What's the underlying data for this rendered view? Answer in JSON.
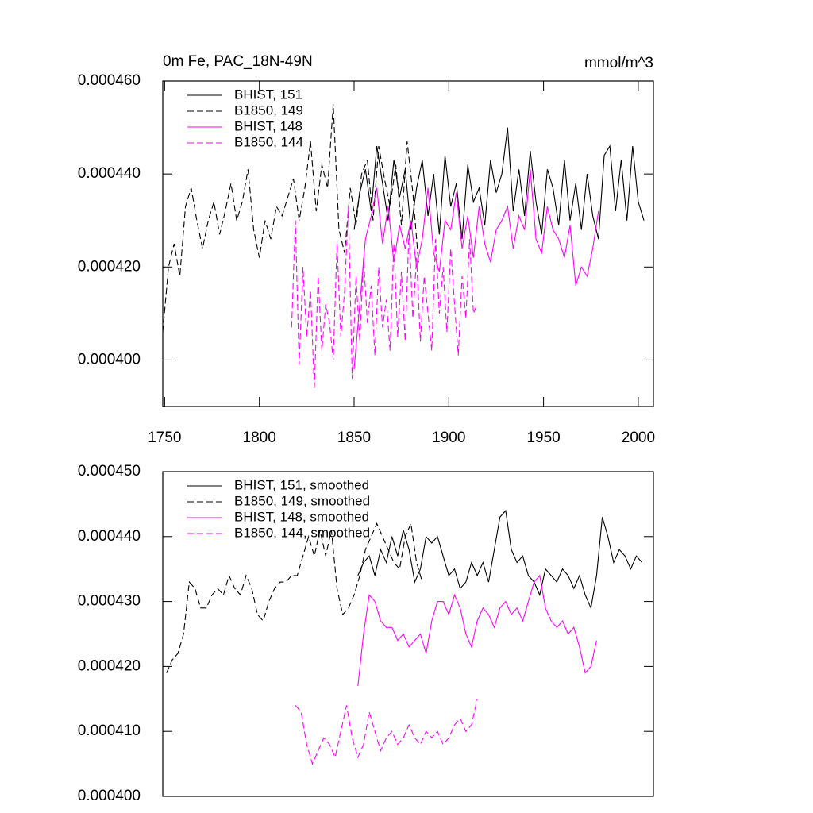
{
  "chart_data": [
    {
      "type": "line",
      "title": "0m Fe, PAC_18N-49N",
      "units": "mmol/m^3",
      "xlim": [
        1749,
        2008
      ],
      "xticks": [
        1750,
        1800,
        1850,
        1900,
        1950,
        2000
      ],
      "ylim": [
        0.00039,
        0.00046
      ],
      "yticks": [
        {
          "value": 0.0004,
          "label": "0.000400"
        },
        {
          "value": 0.00042,
          "label": "0.000420"
        },
        {
          "value": 0.00044,
          "label": "0.000440"
        },
        {
          "value": 0.00046,
          "label": "0.000460"
        }
      ],
      "legend": "upper left",
      "series": [
        {
          "name": "BHIST, 151",
          "color": "#000000",
          "style": "solid",
          "x": [
            1850,
            1853,
            1856,
            1859,
            1862,
            1865,
            1868,
            1871,
            1874,
            1877,
            1880,
            1883,
            1886,
            1889,
            1892,
            1895,
            1898,
            1901,
            1904,
            1907,
            1910,
            1913,
            1916,
            1919,
            1922,
            1925,
            1928,
            1931,
            1934,
            1937,
            1940,
            1943,
            1946,
            1949,
            1952,
            1955,
            1958,
            1961,
            1964,
            1967,
            1970,
            1973,
            1976,
            1979,
            1982,
            1985,
            1988,
            1991,
            1994,
            1997,
            2000,
            2003
          ],
          "values": [
            0.000428,
            0.000436,
            0.000441,
            0.000432,
            0.000446,
            0.000438,
            0.00043,
            0.000443,
            0.000435,
            0.000441,
            0.000428,
            0.000437,
            0.000443,
            0.000431,
            0.00044,
            0.000427,
            0.000444,
            0.000433,
            0.000438,
            0.000426,
            0.000442,
            0.000434,
            0.000437,
            0.000429,
            0.000443,
            0.000436,
            0.00044,
            0.00045,
            0.000432,
            0.000441,
            0.000431,
            0.000445,
            0.000434,
            0.000427,
            0.000441,
            0.000437,
            0.000429,
            0.000443,
            0.00043,
            0.000438,
            0.000428,
            0.00044,
            0.000431,
            0.000426,
            0.000444,
            0.000446,
            0.000432,
            0.000443,
            0.00043,
            0.000446,
            0.000434,
            0.00043
          ]
        },
        {
          "name": "B1850, 149",
          "color": "#000000",
          "style": "dashed",
          "x": [
            1749,
            1752,
            1755,
            1758,
            1761,
            1764,
            1767,
            1770,
            1773,
            1776,
            1779,
            1782,
            1785,
            1788,
            1791,
            1794,
            1797,
            1800,
            1803,
            1806,
            1809,
            1812,
            1815,
            1818,
            1821,
            1824,
            1827,
            1830,
            1833,
            1836,
            1839,
            1842,
            1845,
            1848,
            1851,
            1854,
            1857,
            1860,
            1863,
            1866,
            1869,
            1872,
            1875,
            1878,
            1881,
            1884
          ],
          "values": [
            0.000406,
            0.00042,
            0.000425,
            0.000418,
            0.000433,
            0.000437,
            0.00043,
            0.000424,
            0.00043,
            0.000434,
            0.000427,
            0.000432,
            0.000438,
            0.00043,
            0.000434,
            0.000441,
            0.000428,
            0.000422,
            0.00043,
            0.000426,
            0.000433,
            0.000431,
            0.000435,
            0.000439,
            0.00043,
            0.000437,
            0.000447,
            0.000432,
            0.000442,
            0.000437,
            0.000455,
            0.000428,
            0.000423,
            0.000437,
            0.000429,
            0.00044,
            0.000443,
            0.00043,
            0.000446,
            0.000439,
            0.000433,
            0.000442,
            0.000429,
            0.000447,
            0.000436,
            0.000421
          ]
        },
        {
          "name": "BHIST, 148",
          "color": "#ff00ff",
          "style": "solid",
          "x": [
            1850,
            1853,
            1856,
            1859,
            1862,
            1865,
            1868,
            1871,
            1874,
            1877,
            1880,
            1883,
            1886,
            1889,
            1892,
            1895,
            1898,
            1901,
            1904,
            1907,
            1910,
            1913,
            1916,
            1919,
            1922,
            1925,
            1928,
            1931,
            1934,
            1937,
            1940,
            1943,
            1946,
            1949,
            1952,
            1955,
            1958,
            1961,
            1964,
            1967,
            1970,
            1973,
            1976,
            1979
          ],
          "values": [
            0.000398,
            0.000412,
            0.000426,
            0.000431,
            0.000437,
            0.000425,
            0.000433,
            0.000421,
            0.000429,
            0.000424,
            0.00043,
            0.00042,
            0.000426,
            0.000437,
            0.000423,
            0.000419,
            0.00043,
            0.000428,
            0.000436,
            0.000424,
            0.000431,
            0.000422,
            0.000433,
            0.000425,
            0.000421,
            0.000428,
            0.00043,
            0.000433,
            0.000424,
            0.000431,
            0.000428,
            0.000441,
            0.000426,
            0.000423,
            0.000433,
            0.000428,
            0.000426,
            0.000422,
            0.000429,
            0.000416,
            0.00042,
            0.000418,
            0.000424,
            0.000432
          ]
        },
        {
          "name": "B1850, 144",
          "color": "#ff00ff",
          "style": "dashed",
          "x": [
            1817,
            1819,
            1821,
            1823,
            1825,
            1827,
            1829,
            1831,
            1833,
            1835,
            1837,
            1839,
            1841,
            1843,
            1845,
            1847,
            1849,
            1851,
            1853,
            1855,
            1857,
            1859,
            1861,
            1863,
            1865,
            1867,
            1869,
            1871,
            1873,
            1875,
            1877,
            1879,
            1881,
            1883,
            1885,
            1887,
            1889,
            1891,
            1893,
            1895,
            1897,
            1899,
            1901,
            1903,
            1905,
            1907,
            1909,
            1911,
            1913,
            1915
          ],
          "values": [
            0.000407,
            0.00043,
            0.000399,
            0.00042,
            0.000405,
            0.000415,
            0.000394,
            0.000418,
            0.000402,
            0.000412,
            0.000408,
            0.0004,
            0.000425,
            0.000405,
            0.000415,
            0.000433,
            0.000396,
            0.000418,
            0.000404,
            0.000422,
            0.000408,
            0.000416,
            0.000401,
            0.00042,
            0.000407,
            0.000413,
            0.000402,
            0.000425,
            0.000405,
            0.000419,
            0.000404,
            0.000428,
            0.000409,
            0.000422,
            0.000404,
            0.000418,
            0.00041,
            0.000402,
            0.000426,
            0.00041,
            0.00042,
            0.000406,
            0.000424,
            0.000412,
            0.000401,
            0.000418,
            0.000409,
            0.000426,
            0.00041,
            0.000412
          ]
        }
      ]
    },
    {
      "type": "line",
      "xlim": [
        1749,
        2008
      ],
      "ylim": [
        0.0004,
        0.00045
      ],
      "yticks": [
        {
          "value": 0.0004,
          "label": "0.000400"
        },
        {
          "value": 0.00041,
          "label": "0.000410"
        },
        {
          "value": 0.00042,
          "label": "0.000420"
        },
        {
          "value": 0.00043,
          "label": "0.000430"
        },
        {
          "value": 0.00044,
          "label": "0.000440"
        },
        {
          "value": 0.00045,
          "label": "0.000450"
        }
      ],
      "legend": "upper left",
      "series": [
        {
          "name": "BHIST, 151, smoothed",
          "color": "#000000",
          "style": "solid",
          "x": [
            1852,
            1855,
            1858,
            1861,
            1864,
            1867,
            1870,
            1873,
            1876,
            1879,
            1882,
            1885,
            1888,
            1891,
            1894,
            1897,
            1900,
            1903,
            1906,
            1909,
            1912,
            1915,
            1918,
            1921,
            1924,
            1927,
            1930,
            1933,
            1936,
            1939,
            1942,
            1945,
            1948,
            1951,
            1954,
            1957,
            1960,
            1963,
            1966,
            1969,
            1972,
            1975,
            1978,
            1981,
            1984,
            1987,
            1990,
            1993,
            1996,
            1999,
            2002
          ],
          "values": [
            0.000434,
            0.000436,
            0.000437,
            0.000434,
            0.000438,
            0.000436,
            0.00044,
            0.000437,
            0.000441,
            0.000438,
            0.000433,
            0.000435,
            0.00044,
            0.000439,
            0.00044,
            0.000437,
            0.000434,
            0.000435,
            0.000432,
            0.000433,
            0.000436,
            0.000434,
            0.000436,
            0.000433,
            0.000438,
            0.000443,
            0.000444,
            0.000438,
            0.000436,
            0.000437,
            0.000434,
            0.000433,
            0.000431,
            0.000435,
            0.000434,
            0.000433,
            0.000435,
            0.000434,
            0.000432,
            0.000434,
            0.000431,
            0.000429,
            0.000434,
            0.000443,
            0.00044,
            0.000436,
            0.000438,
            0.000437,
            0.000435,
            0.000437,
            0.000436
          ]
        },
        {
          "name": "B1850, 149, smoothed",
          "color": "#000000",
          "style": "dashed",
          "x": [
            1751,
            1754,
            1757,
            1760,
            1763,
            1766,
            1769,
            1772,
            1775,
            1778,
            1781,
            1784,
            1787,
            1790,
            1793,
            1796,
            1799,
            1802,
            1805,
            1808,
            1811,
            1814,
            1817,
            1820,
            1823,
            1826,
            1829,
            1832,
            1835,
            1838,
            1841,
            1844,
            1847,
            1850,
            1853,
            1856,
            1859,
            1862,
            1865,
            1868,
            1871,
            1874,
            1877,
            1880,
            1883,
            1886
          ],
          "values": [
            0.000419,
            0.000421,
            0.000422,
            0.000425,
            0.000433,
            0.000432,
            0.000429,
            0.000429,
            0.000431,
            0.000432,
            0.000431,
            0.000434,
            0.000432,
            0.000431,
            0.000434,
            0.000432,
            0.000428,
            0.000427,
            0.00043,
            0.000432,
            0.000433,
            0.000433,
            0.000434,
            0.000434,
            0.000437,
            0.00044,
            0.000437,
            0.000441,
            0.000437,
            0.000441,
            0.000432,
            0.000428,
            0.000429,
            0.000431,
            0.000434,
            0.000438,
            0.00044,
            0.000442,
            0.00044,
            0.000438,
            0.000436,
            0.000435,
            0.00044,
            0.000442,
            0.000436,
            0.000433
          ]
        },
        {
          "name": "BHIST, 148, smoothed",
          "color": "#ff00ff",
          "style": "solid",
          "x": [
            1852,
            1855,
            1858,
            1861,
            1864,
            1867,
            1870,
            1873,
            1876,
            1879,
            1882,
            1885,
            1888,
            1891,
            1894,
            1897,
            1900,
            1903,
            1906,
            1909,
            1912,
            1915,
            1918,
            1921,
            1924,
            1927,
            1930,
            1933,
            1936,
            1939,
            1942,
            1945,
            1948,
            1951,
            1954,
            1957,
            1960,
            1963,
            1966,
            1969,
            1972,
            1975,
            1978
          ],
          "values": [
            0.000417,
            0.000425,
            0.000431,
            0.00043,
            0.000427,
            0.000426,
            0.000426,
            0.000424,
            0.000425,
            0.000423,
            0.000424,
            0.000425,
            0.000422,
            0.000427,
            0.00043,
            0.00043,
            0.000428,
            0.000431,
            0.000429,
            0.000425,
            0.000423,
            0.000427,
            0.000429,
            0.000428,
            0.000426,
            0.000429,
            0.00043,
            0.000428,
            0.000429,
            0.000427,
            0.00043,
            0.000433,
            0.000434,
            0.000429,
            0.000427,
            0.000426,
            0.000427,
            0.000425,
            0.000426,
            0.000423,
            0.000419,
            0.00042,
            0.000424
          ]
        },
        {
          "name": "B1850, 144, smoothed",
          "color": "#ff00ff",
          "style": "dashed",
          "x": [
            1819,
            1822,
            1825,
            1828,
            1831,
            1834,
            1837,
            1840,
            1843,
            1846,
            1849,
            1852,
            1855,
            1858,
            1861,
            1864,
            1867,
            1870,
            1873,
            1876,
            1879,
            1882,
            1885,
            1888,
            1891,
            1894,
            1897,
            1900,
            1903,
            1906,
            1909,
            1912,
            1915
          ],
          "values": [
            0.000414,
            0.000413,
            0.000408,
            0.000405,
            0.000407,
            0.000409,
            0.000408,
            0.000406,
            0.00041,
            0.000414,
            0.000409,
            0.000406,
            0.000408,
            0.000413,
            0.00041,
            0.000407,
            0.000409,
            0.00041,
            0.000408,
            0.000409,
            0.000411,
            0.000409,
            0.000408,
            0.00041,
            0.000409,
            0.00041,
            0.000408,
            0.000409,
            0.000411,
            0.000412,
            0.00041,
            0.000411,
            0.000415
          ]
        }
      ]
    }
  ]
}
